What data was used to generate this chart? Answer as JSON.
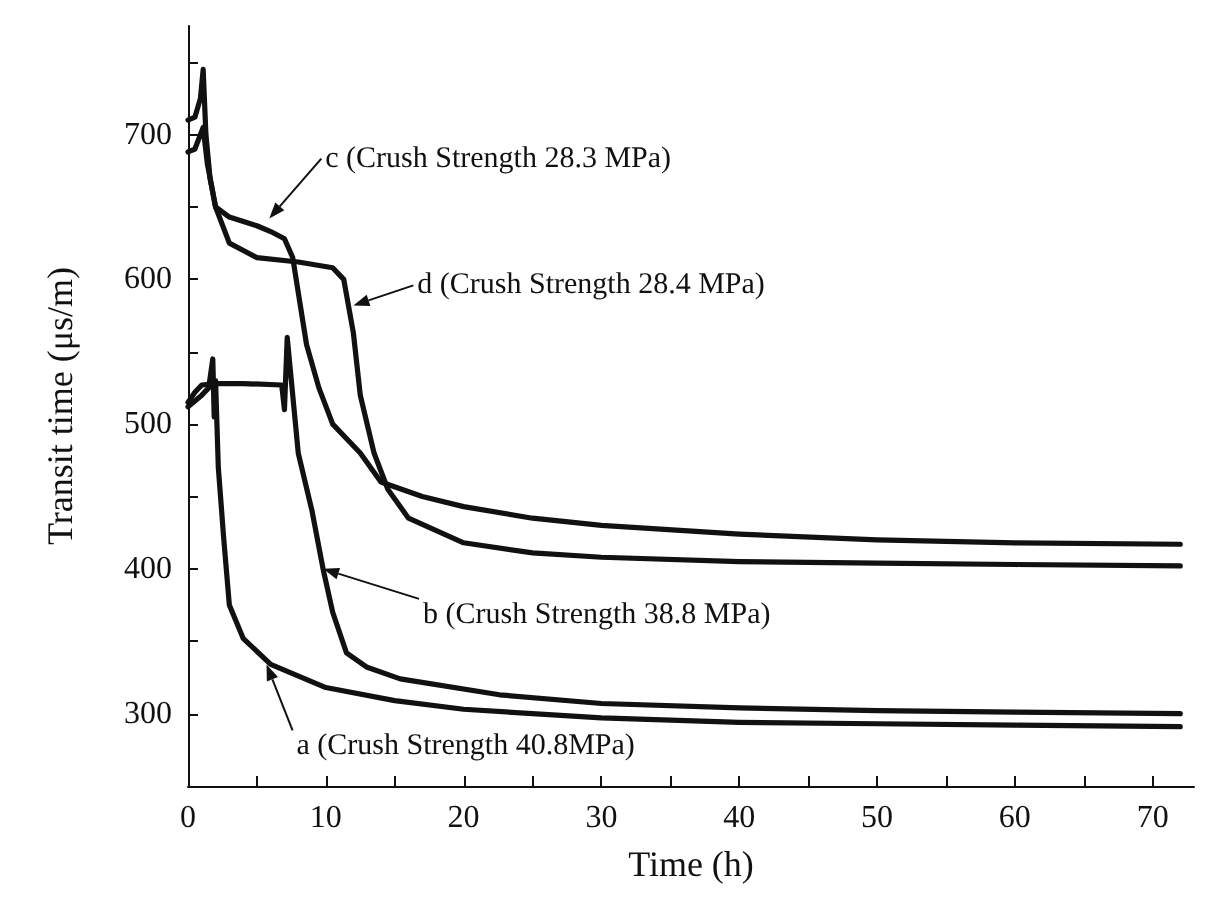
{
  "chart_data": {
    "type": "line",
    "xlabel": "Time (h)",
    "ylabel": "Transit time (μs/m)",
    "xlim": [
      0,
      73
    ],
    "xticks": [
      0,
      10,
      20,
      30,
      40,
      50,
      60,
      70,
      {
        "value": 5,
        "label": null
      },
      {
        "value": 15,
        "label": null
      },
      {
        "value": 25,
        "label": null
      },
      {
        "value": 35,
        "label": null
      },
      {
        "value": 45,
        "label": null
      },
      {
        "value": 55,
        "label": null
      },
      {
        "value": 65,
        "label": null
      }
    ],
    "ylim": [
      250,
      775
    ],
    "yticks": [
      300,
      400,
      500,
      600,
      700,
      {
        "value": 250,
        "label": null
      },
      {
        "value": 350,
        "label": null
      },
      {
        "value": 450,
        "label": null
      },
      {
        "value": 550,
        "label": null
      },
      {
        "value": 650,
        "label": null
      },
      {
        "value": 750,
        "label": null
      }
    ],
    "grid": false,
    "marker": "none",
    "line_style": "solid",
    "series": [
      {
        "color": "#111111",
        "x": [
          0,
          0.5,
          1,
          1.5,
          1.8,
          1.9,
          2.0,
          2.2,
          2.6,
          3,
          4,
          6,
          10,
          15,
          20,
          30,
          40,
          50,
          60,
          72
        ],
        "values": [
          512,
          516,
          520,
          525,
          545,
          505,
          530,
          470,
          420,
          375,
          352,
          334,
          318,
          309,
          303,
          297,
          294,
          293,
          292,
          291
        ]
      },
      {
        "color": "#111111",
        "x": [
          0,
          0.5,
          1,
          2,
          4,
          6.8,
          7.0,
          7.2,
          7.5,
          8,
          9,
          9.8,
          10.5,
          11.5,
          13,
          15.4,
          22.6,
          30,
          40,
          50,
          60,
          72
        ],
        "values": [
          515,
          522,
          527,
          528,
          528,
          527,
          510,
          560,
          530,
          480,
          440,
          400,
          370,
          342,
          332,
          324,
          313,
          307,
          304,
          302,
          301,
          300
        ]
      },
      {
        "color": "#111111",
        "x": [
          0,
          0.5,
          0.9,
          1.1,
          1.3,
          1.6,
          2,
          3,
          5,
          6,
          7,
          7.6,
          8.6,
          9.5,
          10.5,
          12.5,
          14,
          17,
          20,
          25,
          30,
          40,
          50,
          60,
          72
        ],
        "values": [
          710,
          712,
          725,
          745,
          700,
          670,
          650,
          643,
          637,
          633,
          628,
          615,
          555,
          525,
          500,
          480,
          460,
          450,
          443,
          435,
          430,
          424,
          420,
          418,
          417
        ]
      },
      {
        "color": "#111111",
        "x": [
          0,
          0.5,
          0.9,
          1.1,
          1.4,
          2,
          3,
          5,
          8,
          10.5,
          11.3,
          12,
          12.5,
          13.5,
          14.5,
          16,
          20,
          25,
          30,
          40,
          50,
          60,
          72
        ],
        "values": [
          688,
          690,
          700,
          705,
          680,
          650,
          625,
          615,
          612,
          608,
          600,
          563,
          520,
          480,
          455,
          435,
          418,
          411,
          408,
          405,
          404,
          403,
          402
        ]
      }
    ],
    "annotations": [
      {
        "text": "a (Crush Strength 40.8MPa)",
        "x": 5.7,
        "y": 334
      },
      {
        "text": "b (Crush Strength 38.8 MPa)",
        "x": 9.8,
        "y": 400
      },
      {
        "text": "c (Crush Strength 28.3 MPa)",
        "x": 5.9,
        "y": 642
      },
      {
        "text": "d (Crush Strength 28.4 MPa)",
        "x": 12,
        "y": 582
      }
    ]
  }
}
